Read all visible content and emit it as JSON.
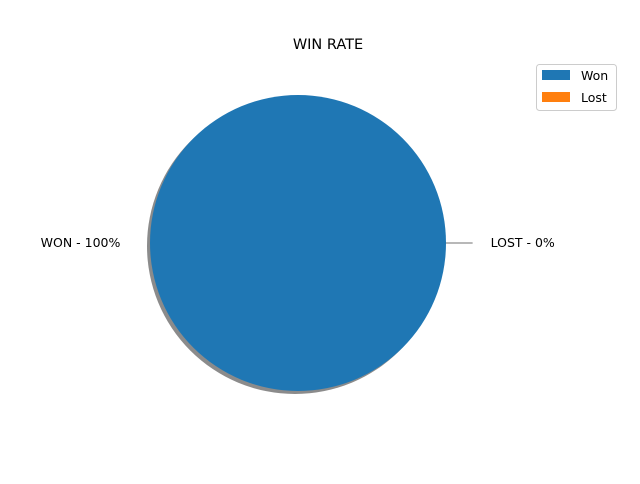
{
  "chart_data": {
    "type": "pie",
    "title": "WIN RATE",
    "slices": [
      {
        "label": "Won",
        "value": 100,
        "slice_label": "WON - 100%",
        "color": "#1f77b4"
      },
      {
        "label": "Lost",
        "value": 0,
        "slice_label": "LOST - 0%",
        "color": "#ff7f0e"
      }
    ],
    "shadow": true,
    "legend": {
      "placement": "top-right",
      "entries": [
        "Won",
        "Lost"
      ]
    }
  }
}
